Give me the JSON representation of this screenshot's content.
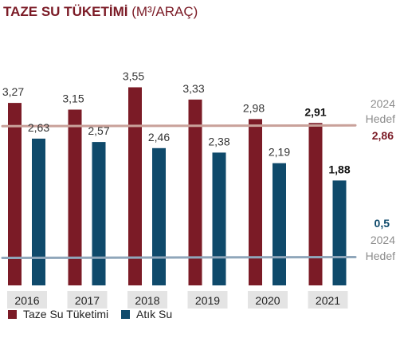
{
  "title": "TAZE SU TÜKETİMİ",
  "title_unit": "(M³/ARAÇ)",
  "colors": {
    "title": "#7b1b26",
    "taze": "#7b1b26",
    "atik": "#0f4a6b",
    "taze_target_line": "#c9a19a",
    "atik_target_line": "#8fa6ba",
    "target_text": "#8c8c8c",
    "year_box": "#e4e4e4",
    "value_text": "#333333"
  },
  "chart_data": {
    "type": "bar",
    "categories": [
      "2016",
      "2017",
      "2018",
      "2019",
      "2020",
      "2021"
    ],
    "series": [
      {
        "name": "Taze Su Tüketimi",
        "values": [
          3.27,
          3.15,
          3.55,
          3.33,
          2.98,
          2.91
        ],
        "labels": [
          "3,27",
          "3,15",
          "3,55",
          "3,33",
          "2,98",
          "2,91"
        ]
      },
      {
        "name": "Atık Su",
        "values": [
          2.63,
          2.57,
          2.46,
          2.38,
          2.19,
          1.88
        ],
        "labels": [
          "2,63",
          "2,57",
          "2,46",
          "2,38",
          "2,19",
          "1,88"
        ]
      }
    ],
    "ylim": [
      0,
      3.65
    ],
    "targets": [
      {
        "value": 2.86,
        "value_label": "2,86",
        "year": "2024",
        "text": "Hedef",
        "series": "Taze Su Tüketimi"
      },
      {
        "value": 0.5,
        "value_label": "0,5",
        "year": "2024",
        "text": "Hedef",
        "series": "Atık Su"
      }
    ],
    "legend_position": "bottom-left",
    "grid": false
  }
}
